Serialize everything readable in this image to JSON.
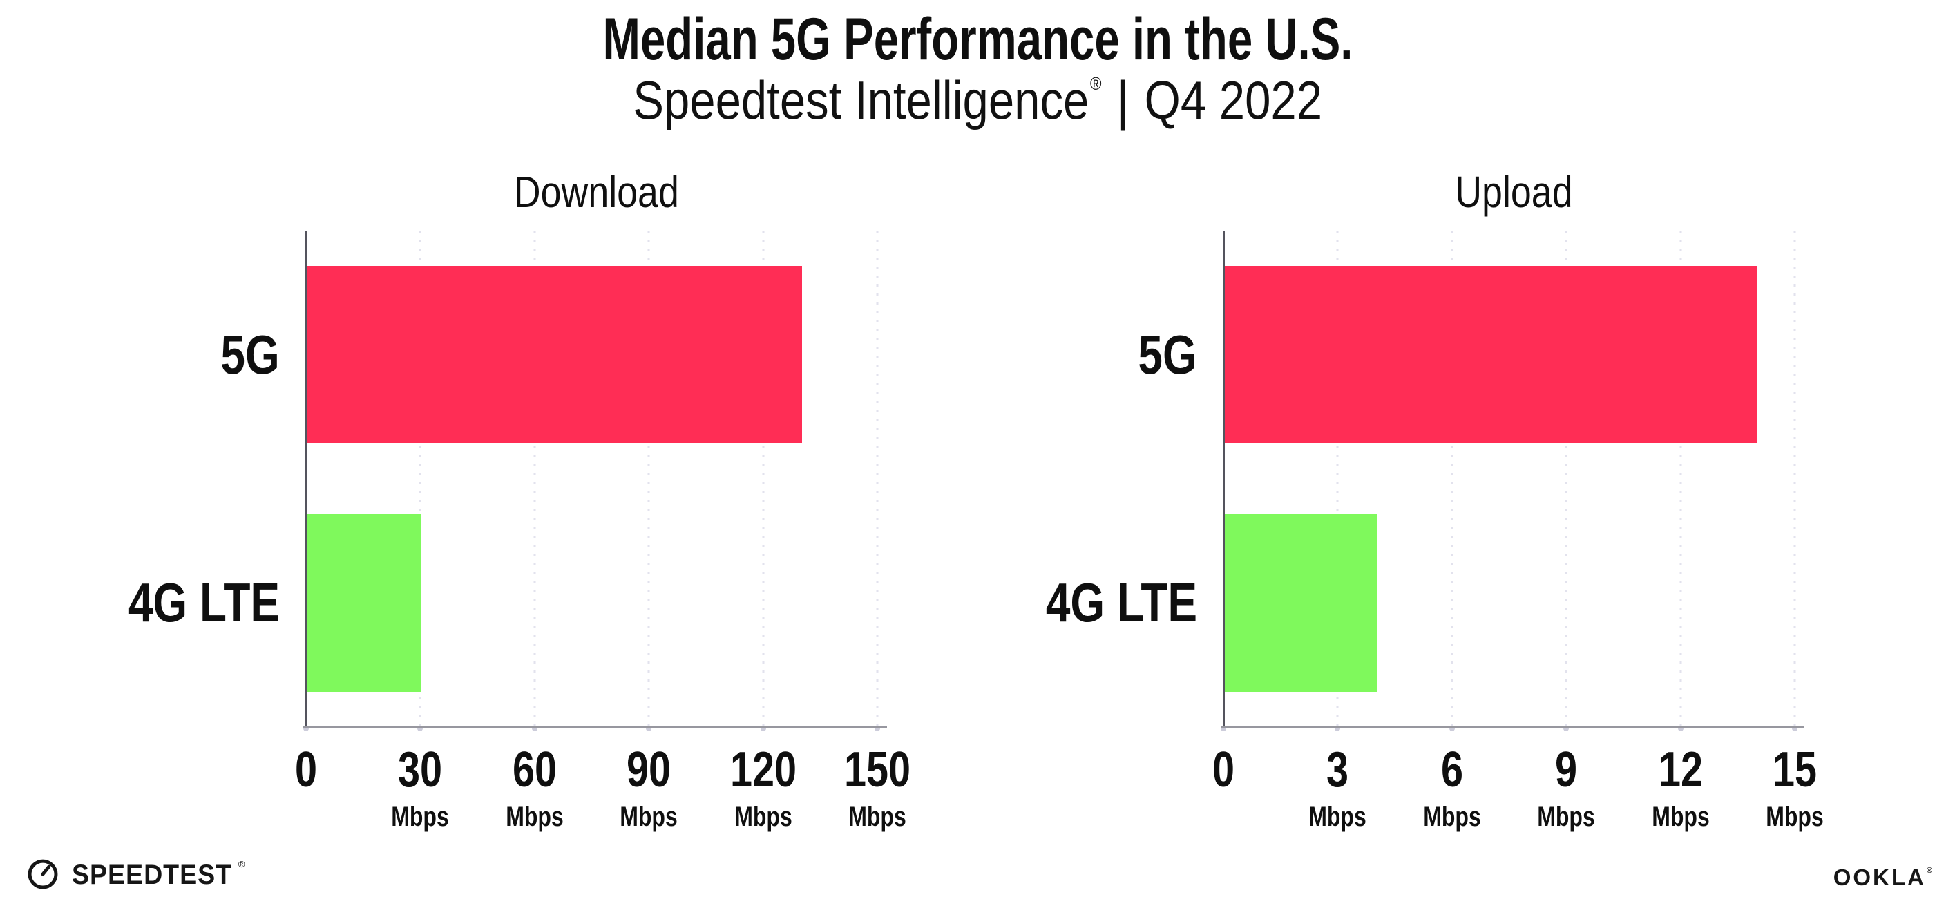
{
  "header": {
    "title": "Median 5G Performance in the U.S.",
    "subtitle": {
      "product": "Speedtest Intelligence",
      "registered": "®",
      "separator": "|",
      "period": "Q4 2022"
    }
  },
  "colors": {
    "bar_5g": "#FF2D55",
    "bar_4g_lte": "#7FF95C",
    "y_axis": "#54545e",
    "x_axis": "#97979f",
    "gridline": "#e2e2ed",
    "text": "#0f0f0f"
  },
  "chart_data": [
    {
      "type": "bar",
      "orientation": "horizontal",
      "title": "Download",
      "categories": [
        "5G",
        "4G LTE"
      ],
      "values": [
        130,
        30
      ],
      "unit": "Mbps",
      "xlabel": "",
      "ylabel": "",
      "xlim": [
        0,
        152
      ],
      "xticks": [
        0,
        30,
        60,
        90,
        120,
        150
      ],
      "bar_colors": [
        "#FF2D55",
        "#7FF95C"
      ],
      "grid": "dotted-vertical",
      "legend": "none"
    },
    {
      "type": "bar",
      "orientation": "horizontal",
      "title": "Upload",
      "categories": [
        "5G",
        "4G LTE"
      ],
      "values": [
        14,
        4
      ],
      "unit": "Mbps",
      "xlabel": "",
      "ylabel": "",
      "xlim": [
        0,
        15.2
      ],
      "xticks": [
        0,
        3,
        6,
        9,
        12,
        15
      ],
      "bar_colors": [
        "#FF2D55",
        "#7FF95C"
      ],
      "grid": "dotted-vertical",
      "legend": "none"
    }
  ],
  "footer": {
    "speedtest": {
      "label": "SPEEDTEST",
      "registered": "®"
    },
    "ookla": {
      "label": "OOKLA",
      "registered": "®"
    }
  }
}
